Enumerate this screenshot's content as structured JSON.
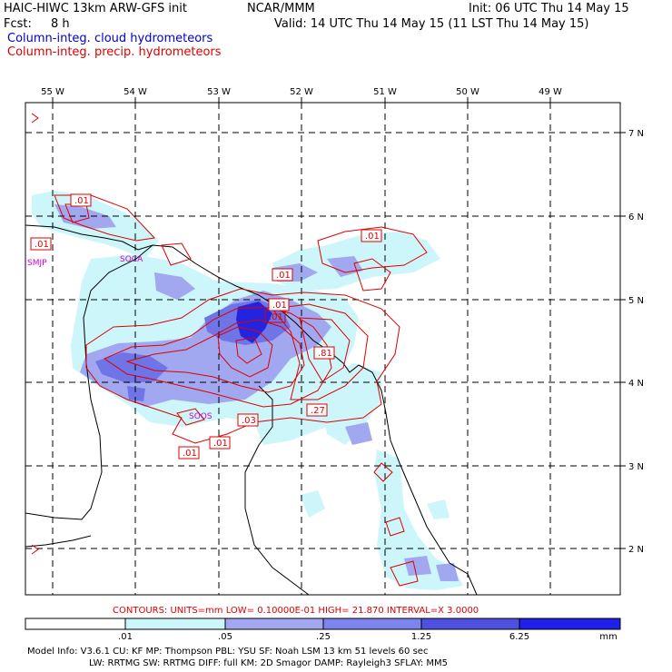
{
  "header": {
    "title": "HAIC-HIWC 13km ARW-GFS init",
    "org": "NCAR/MMM",
    "init": "Init: 06 UTC Thu 14 May 15",
    "fcst_label": "Fcst:",
    "fcst_value": "8 h",
    "valid": "Valid: 14 UTC Thu 14 May 15 (11 LST Thu 14 May 15)",
    "field1": "Column-integ. cloud hydrometeors",
    "field2": "Column-integ. precip. hydrometeors"
  },
  "map": {
    "lon_labels": [
      "55 W",
      "54 W",
      "53 W",
      "52 W",
      "51 W",
      "50 W",
      "49 W"
    ],
    "lat_labels": [
      "7 N",
      "6 N",
      "5 N",
      "4 N",
      "3 N",
      "2 N"
    ],
    "contour_labels": [
      ".01",
      ".01",
      ".01",
      ".01",
      ".01",
      ".01",
      ".01",
      ".01",
      ".03",
      ".27",
      ".81"
    ],
    "station_labels": [
      "SMJP",
      "SOCA",
      "SOOS"
    ],
    "colors": {
      "shade_light": "#ccf6fa",
      "shade_mid": "#a2a8f0",
      "shade_strong": "#6666e6",
      "shade_dark": "#2020e0",
      "contour": "#dd0000",
      "station": "#cc00cc",
      "coast": "#000000"
    }
  },
  "footer": {
    "contour_info": "CONTOURS:  UNITS=mm  LOW= 0.10000E-01  HIGH=  21.870     INTERVAL=X  3.0000",
    "colorbar_ticks": [
      ".01",
      ".05",
      ".25",
      "1.25",
      "6.25",
      "mm"
    ],
    "colorbar_colors": [
      "#ffffff",
      "#ccf6fa",
      "#a2a8f0",
      "#7e84ee",
      "#5050e0",
      "#2020e8"
    ],
    "model_line1": "Model Info: V3.6.1   CU: KF       MP: Thompson     PBL: YSU       SF: Noah LSM     13 km   51 levels  60 sec",
    "model_line2": "LW: RRTMG   SW: RRTMG   DIFF: full    KM: 2D Smagor DAMP: Rayleigh3   SFLAY: MM5"
  }
}
